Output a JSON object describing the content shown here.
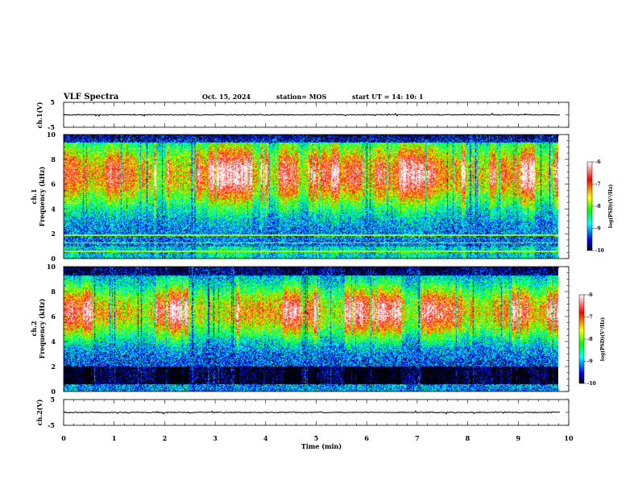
{
  "header": {
    "title": "VLF Spectra",
    "date": "Oct. 15, 2024",
    "station": "station= MOS",
    "start": "start  UT =   14: 10: 1"
  },
  "chart_data": [
    {
      "type": "line",
      "panel": "ch1-waveform",
      "ylabel": "ch.1(V)",
      "ylim": [
        -5,
        5
      ],
      "yticks": [
        "5",
        "-5"
      ],
      "xlim": [
        0,
        10
      ],
      "baseline": 0,
      "data_end": 9.83
    },
    {
      "type": "heatmap",
      "panel": "ch1-spectrogram",
      "ylabel": [
        "ch.1",
        "Frequency  (kHz)"
      ],
      "ylim": [
        0,
        10
      ],
      "yticks": [
        "0",
        "2",
        "4",
        "6",
        "8",
        "10"
      ],
      "xlim": [
        0,
        10
      ],
      "data_end": 9.83,
      "colorbar": {
        "label": "log(PSD)(V²/Hz)",
        "range": [
          -10,
          -6
        ],
        "ticks": [
          "-6",
          "-7",
          "-8",
          "-9",
          "-10"
        ],
        "colors": [
          "#000000",
          "#0000ff",
          "#00ffff",
          "#00ff00",
          "#ffff00",
          "#ff0000",
          "#ffffff"
        ]
      }
    },
    {
      "type": "heatmap",
      "panel": "ch2-spectrogram",
      "ylabel": [
        "ch.2",
        "Frequency  (kHz)"
      ],
      "ylim": [
        0,
        10
      ],
      "yticks": [
        "0",
        "2",
        "4",
        "6",
        "8",
        "10"
      ],
      "xlim": [
        0,
        10
      ],
      "data_end": 9.83,
      "colorbar": {
        "label": "log(PSD)(V²/Hz)",
        "range": [
          -10,
          -6
        ],
        "ticks": [
          "-6",
          "-7",
          "-8",
          "-9",
          "-10"
        ],
        "colors": [
          "#000000",
          "#0000ff",
          "#00ffff",
          "#00ff00",
          "#ffff00",
          "#ff0000",
          "#ffffff"
        ]
      }
    },
    {
      "type": "line",
      "panel": "ch2-waveform",
      "ylabel": "ch.2(V)",
      "ylim": [
        -5,
        5
      ],
      "yticks": [
        "5",
        "-5"
      ],
      "xlim": [
        0,
        10
      ],
      "baseline": 0,
      "data_end": 9.83
    }
  ],
  "xaxis": {
    "label": "Time  (min)",
    "ticks": [
      "0",
      "1",
      "2",
      "3",
      "4",
      "5",
      "6",
      "7",
      "8",
      "9",
      "10"
    ],
    "range": [
      0,
      10
    ]
  }
}
